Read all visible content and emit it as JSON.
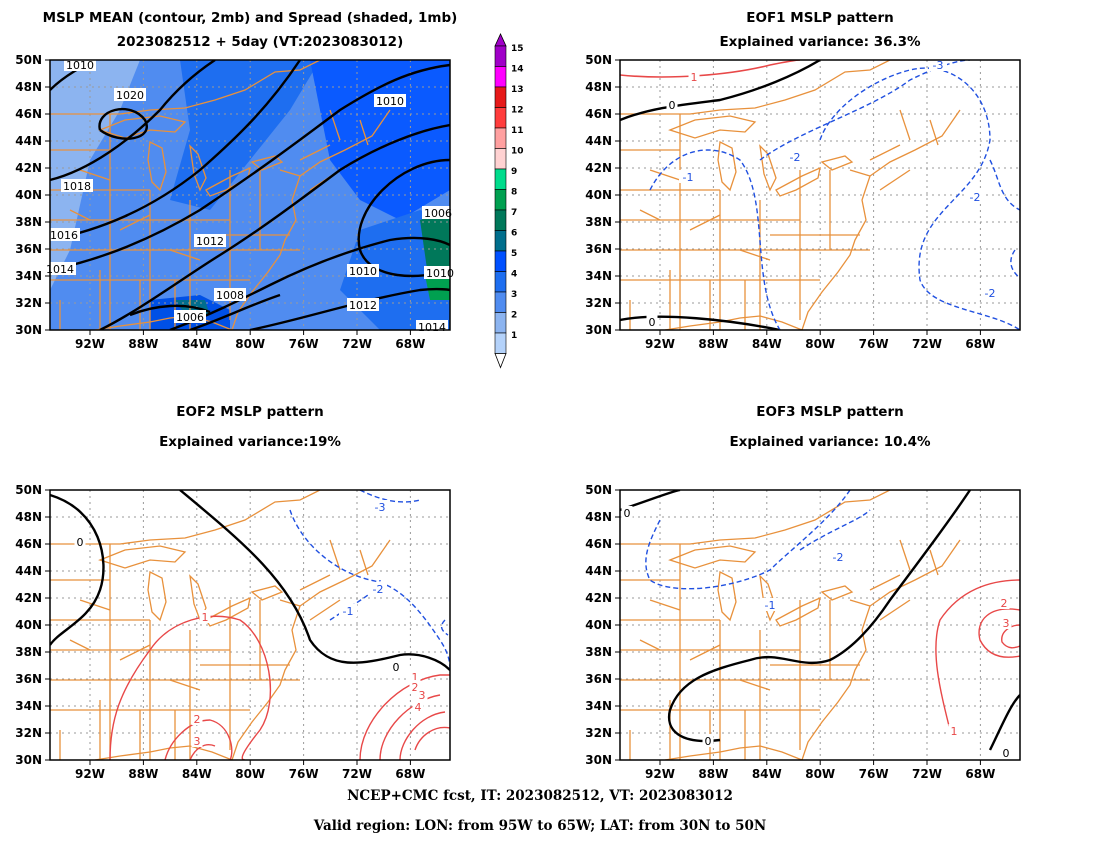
{
  "panels": {
    "mean": {
      "title_line1": "MSLP MEAN (contour, 2mb) and Spread (shaded, 1mb)",
      "title_line2": "2023082512 + 5day (VT:2023083012)",
      "contour_labels": [
        "1020",
        "1018",
        "1016",
        "1014",
        "1012",
        "1010",
        "1010",
        "1010",
        "1008",
        "1006",
        "1012",
        "1014",
        "1006",
        "1006",
        "1010"
      ]
    },
    "eof1": {
      "title_line1": "EOF1 MSLP pattern",
      "title_line2": "Explained variance: 36.3%",
      "contour_labels": [
        "1",
        "0",
        "-1",
        "-2",
        "-3",
        "-2",
        "-2",
        "0"
      ]
    },
    "eof2": {
      "title_line1": "EOF2 MSLP pattern",
      "title_line2": "Explained variance:19%",
      "contour_labels": [
        "0",
        "-3",
        "-2",
        "-1",
        "1",
        "0",
        "1",
        "2",
        "3",
        "4",
        "2",
        "3"
      ]
    },
    "eof3": {
      "title_line1": "EOF3 MSLP pattern",
      "title_line2": "Explained variance: 10.4%",
      "contour_labels": [
        "0",
        "-2",
        "-1",
        "0",
        "2",
        "3",
        "1",
        "0",
        "0"
      ]
    }
  },
  "axes": {
    "lat_labels": [
      "50N",
      "48N",
      "46N",
      "44N",
      "42N",
      "40N",
      "38N",
      "36N",
      "34N",
      "32N",
      "30N"
    ],
    "lon_labels": [
      "92W",
      "88W",
      "84W",
      "80W",
      "76W",
      "72W",
      "68W"
    ]
  },
  "colorbar": {
    "labels": [
      "15",
      "14",
      "13",
      "12",
      "11",
      "10",
      "9",
      "8",
      "7",
      "6",
      "5",
      "4",
      "3",
      "2",
      "1"
    ],
    "colors": [
      "#a000c8",
      "#ff00ff",
      "#e61919",
      "#ff3c3c",
      "#ffa0a0",
      "#ffd2d2",
      "#00dc8c",
      "#00a050",
      "#00785a",
      "#006e8c",
      "#0050ff",
      "#1e6ef0",
      "#508cf0",
      "#8cb4f0",
      "#b4d2fa"
    ]
  },
  "colors": {
    "state_lines": "#e8913c",
    "positive": "#e84848",
    "negative": "#2050e0",
    "zero": "#000000",
    "grid": "#9a9a9a"
  },
  "footer": {
    "line1": "NCEP+CMC fcst, IT: 2023082512, VT: 2023083012",
    "line2": "Valid region: LON: from 95W to 65W; LAT: from 30N to 50N"
  }
}
